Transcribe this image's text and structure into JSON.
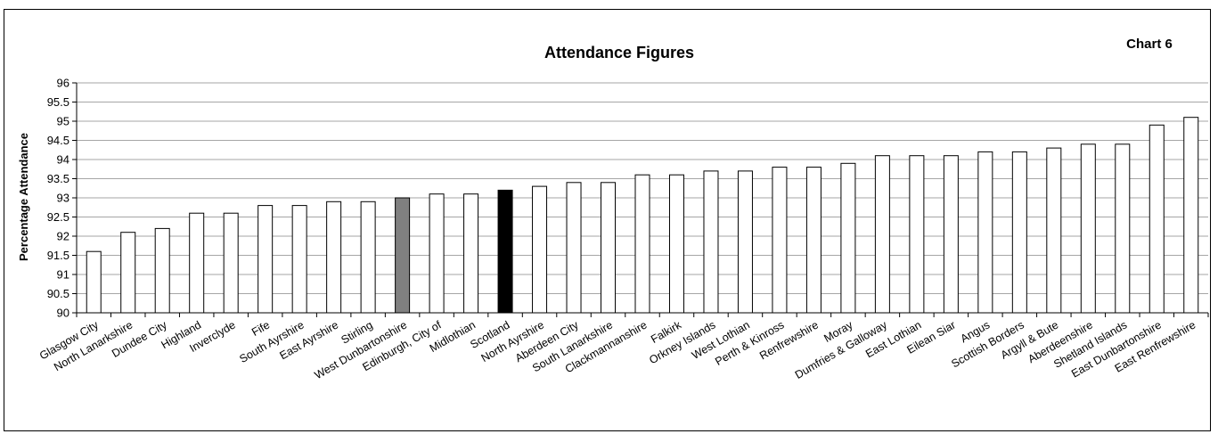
{
  "chart_data": {
    "type": "bar",
    "title": "Attendance Figures",
    "corner_label": "Chart 6",
    "ylabel": "Percentage Attendance",
    "xlabel": "",
    "ylim": [
      90,
      96
    ],
    "y_ticks": [
      "90",
      "90.5",
      "91",
      "91.5",
      "92",
      "92.5",
      "93",
      "93.5",
      "94",
      "94.5",
      "95",
      "95.5",
      "96"
    ],
    "grid": true,
    "legend": "none",
    "categories": [
      "Glasgow City",
      "North Lanarkshire",
      "Dundee City",
      "Highland",
      "Inverclyde",
      "Fife",
      "South Ayrshire",
      "East Ayrshire",
      "Stirling",
      "West Dunbartonshire",
      "Edinburgh, City of",
      "Midlothian",
      "Scotland",
      "North Ayrshire",
      "Aberdeen City",
      "South Lanarkshire",
      "Clackmannanshire",
      "Falkirk",
      "Orkney Islands",
      "West Lothian",
      "Perth & Kinross",
      "Renfrewshire",
      "Moray",
      "Dumfries & Galloway",
      "East Lothian",
      "Eilean Siar",
      "Angus",
      "Scottish Borders",
      "Argyll & Bute",
      "Aberdeenshire",
      "Shetland Islands",
      "East Dunbartonshire",
      "East Renfrewshire"
    ],
    "values": [
      91.6,
      92.1,
      92.2,
      92.6,
      92.6,
      92.8,
      92.8,
      92.9,
      92.9,
      93.0,
      93.1,
      93.1,
      93.2,
      93.3,
      93.4,
      93.4,
      93.6,
      93.6,
      93.7,
      93.7,
      93.8,
      93.8,
      93.9,
      94.1,
      94.1,
      94.1,
      94.2,
      94.2,
      94.3,
      94.4,
      94.4,
      94.9,
      95.1
    ],
    "colors": {
      "default": "#ffffff",
      "West Dunbartonshire": "#808080",
      "Scotland": "#000000",
      "grid": "#a6a6a6",
      "outline": "#000000"
    }
  }
}
